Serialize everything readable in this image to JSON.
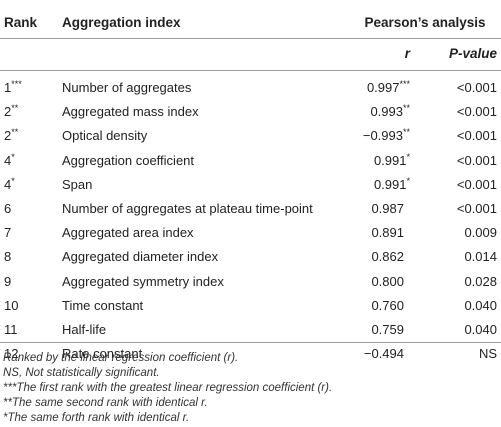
{
  "header": {
    "rank": "Rank",
    "index": "Aggregation index",
    "group": "Pearson’s analysis",
    "r": "r",
    "p": "P-value"
  },
  "rows": [
    {
      "rank": "1",
      "rank_sup": "***",
      "index": "Number of aggregates",
      "r": "0.997",
      "r_sup": "***",
      "p": "<0.001"
    },
    {
      "rank": "2",
      "rank_sup": "**",
      "index": "Aggregated mass index",
      "r": "0.993",
      "r_sup": "**",
      "p": "<0.001"
    },
    {
      "rank": "2",
      "rank_sup": "**",
      "index": "Optical density",
      "r": "−0.993",
      "r_sup": "**",
      "p": "<0.001"
    },
    {
      "rank": "4",
      "rank_sup": "*",
      "index": "Aggregation coefficient",
      "r": "0.991",
      "r_sup": "*",
      "p": "<0.001"
    },
    {
      "rank": "4",
      "rank_sup": "*",
      "index": "Span",
      "r": "0.991",
      "r_sup": "*",
      "p": "<0.001"
    },
    {
      "rank": "6",
      "rank_sup": "",
      "index": "Number of aggregates at plateau time-point",
      "r": "0.987",
      "r_sup": "",
      "p": "<0.001"
    },
    {
      "rank": "7",
      "rank_sup": "",
      "index": "Aggregated area index",
      "r": "0.891",
      "r_sup": "",
      "p": "0.009"
    },
    {
      "rank": "8",
      "rank_sup": "",
      "index": "Aggregated diameter index",
      "r": "0.862",
      "r_sup": "",
      "p": "0.014"
    },
    {
      "rank": "9",
      "rank_sup": "",
      "index": "Aggregated symmetry index",
      "r": "0.800",
      "r_sup": "",
      "p": "0.028"
    },
    {
      "rank": "10",
      "rank_sup": "",
      "index": "Time constant",
      "r": "0.760",
      "r_sup": "",
      "p": "0.040"
    },
    {
      "rank": "11",
      "rank_sup": "",
      "index": "Half-life",
      "r": "0.759",
      "r_sup": "",
      "p": "0.040"
    },
    {
      "rank": "12",
      "rank_sup": "",
      "index": "Rate constant",
      "r": "−0.494",
      "r_sup": "",
      "p": "NS"
    }
  ],
  "footnotes": [
    "Ranked by the linear regression coefficient (r).",
    "NS, Not statistically significant.",
    "***The first rank with the greatest linear regression coefficient (r).",
    "**The same second rank with identical r.",
    "*The same forth rank with identical r."
  ]
}
